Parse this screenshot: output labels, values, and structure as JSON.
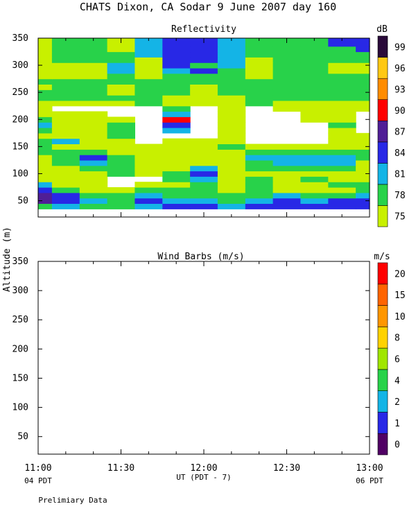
{
  "title": "CHATS Dixon, CA  Sodar   9 June 2007  day 160",
  "ylabel": "Altitude (m)",
  "xlabel": "UT  (PDT - 7)",
  "x_ticks": [
    "11:00",
    "11:30",
    "12:00",
    "12:30",
    "13:00"
  ],
  "x_sub_left": "04 PDT",
  "x_sub_right": "06 PDT",
  "footnote": "Prelimiary Data",
  "colors": {
    "75": "#c8f000",
    "78": "#28d24a",
    "81": "#14b4e6",
    "84": "#2828e6",
    "87": "#501e96",
    "90": "#ff0000",
    "93": "#ff8c00",
    "96": "#ffc814",
    "99": "#2a0a3a"
  },
  "chart_data": [
    {
      "type": "heatmap",
      "title": "Reflectivity",
      "colorbar_unit": "dB",
      "colorbar_levels": [
        "75",
        "78",
        "81",
        "84",
        "87",
        "90",
        "93",
        "96",
        "99"
      ],
      "colorbar_colors": [
        "#c8f000",
        "#28d24a",
        "#14b4e6",
        "#2828e6",
        "#501e96",
        "#ff0000",
        "#ff8c00",
        "#ffc814",
        "#2a0a3a"
      ],
      "x": [
        "11:00",
        "11:10",
        "11:20",
        "11:30",
        "11:40",
        "11:50",
        "12:00",
        "12:10",
        "12:20",
        "12:30",
        "12:40",
        "12:50",
        "13:00"
      ],
      "y": [
        40,
        50,
        60,
        70,
        80,
        90,
        100,
        110,
        120,
        130,
        140,
        150,
        160,
        170,
        180,
        190,
        200,
        210,
        220,
        230,
        240,
        250,
        260,
        270,
        280,
        290,
        300,
        310,
        320,
        330,
        340,
        350
      ],
      "ylim": [
        20,
        350
      ],
      "yticks": [
        50,
        100,
        150,
        200,
        250,
        300,
        350
      ],
      "values_note": "null = no data (white)",
      "values": [
        [
          78,
          81,
          78,
          78,
          81,
          84,
          84,
          81,
          84,
          84,
          84,
          84,
          84
        ],
        [
          87,
          84,
          81,
          78,
          84,
          81,
          81,
          78,
          81,
          84,
          81,
          84,
          84
        ],
        [
          87,
          84,
          78,
          78,
          81,
          78,
          78,
          78,
          78,
          81,
          78,
          78,
          81
        ],
        [
          84,
          78,
          75,
          75,
          78,
          78,
          78,
          75,
          78,
          75,
          75,
          75,
          78
        ],
        [
          81,
          75,
          75,
          null,
          75,
          75,
          78,
          75,
          78,
          75,
          75,
          78,
          78
        ],
        [
          75,
          75,
          75,
          null,
          null,
          78,
          81,
          75,
          78,
          75,
          78,
          75,
          75
        ],
        [
          75,
          75,
          75,
          78,
          75,
          78,
          84,
          75,
          75,
          75,
          75,
          75,
          75
        ],
        [
          75,
          75,
          78,
          78,
          75,
          75,
          81,
          75,
          78,
          78,
          78,
          78,
          75
        ],
        [
          75,
          78,
          81,
          78,
          75,
          75,
          75,
          75,
          78,
          81,
          81,
          81,
          75
        ],
        [
          75,
          78,
          84,
          78,
          75,
          75,
          75,
          75,
          81,
          81,
          81,
          81,
          78
        ],
        [
          78,
          78,
          78,
          75,
          75,
          75,
          75,
          75,
          78,
          78,
          78,
          78,
          78
        ],
        [
          78,
          75,
          75,
          75,
          75,
          75,
          75,
          78,
          75,
          75,
          75,
          75,
          75
        ],
        [
          78,
          81,
          75,
          75,
          null,
          75,
          75,
          75,
          null,
          null,
          null,
          75,
          75
        ],
        [
          75,
          75,
          75,
          78,
          null,
          null,
          null,
          75,
          null,
          null,
          null,
          75,
          75
        ],
        [
          78,
          75,
          75,
          78,
          null,
          81,
          null,
          75,
          null,
          null,
          null,
          75,
          null
        ],
        [
          81,
          75,
          75,
          78,
          null,
          84,
          null,
          75,
          null,
          null,
          null,
          78,
          null
        ],
        [
          78,
          75,
          75,
          75,
          null,
          90,
          null,
          75,
          null,
          null,
          75,
          75,
          null
        ],
        [
          75,
          75,
          75,
          null,
          null,
          81,
          null,
          75,
          null,
          null,
          75,
          75,
          null
        ],
        [
          75,
          null,
          null,
          null,
          null,
          78,
          null,
          75,
          null,
          75,
          75,
          75,
          75
        ],
        [
          75,
          75,
          75,
          75,
          78,
          75,
          75,
          75,
          78,
          75,
          75,
          75,
          75
        ],
        [
          78,
          78,
          78,
          78,
          78,
          75,
          75,
          75,
          78,
          78,
          78,
          78,
          78
        ],
        [
          78,
          78,
          78,
          75,
          78,
          78,
          75,
          78,
          78,
          78,
          78,
          78,
          78
        ],
        [
          75,
          78,
          78,
          75,
          78,
          78,
          75,
          78,
          78,
          78,
          78,
          78,
          78
        ],
        [
          78,
          78,
          78,
          78,
          78,
          78,
          78,
          78,
          78,
          78,
          78,
          78,
          78
        ],
        [
          75,
          75,
          75,
          78,
          75,
          78,
          78,
          78,
          75,
          78,
          78,
          78,
          78
        ],
        [
          75,
          75,
          75,
          81,
          75,
          81,
          84,
          78,
          75,
          78,
          78,
          75,
          75
        ],
        [
          75,
          75,
          75,
          81,
          75,
          84,
          78,
          81,
          75,
          78,
          78,
          75,
          75
        ],
        [
          75,
          78,
          78,
          78,
          75,
          84,
          84,
          81,
          75,
          78,
          78,
          78,
          78
        ],
        [
          75,
          78,
          78,
          78,
          81,
          84,
          84,
          81,
          78,
          78,
          78,
          78,
          78
        ],
        [
          75,
          78,
          78,
          75,
          81,
          84,
          84,
          81,
          78,
          78,
          78,
          78,
          84
        ],
        [
          75,
          78,
          78,
          75,
          81,
          84,
          84,
          81,
          78,
          78,
          78,
          84,
          84
        ],
        [
          75,
          78,
          78,
          75,
          81,
          84,
          84,
          81,
          78,
          78,
          78,
          84,
          84
        ]
      ]
    },
    {
      "type": "scatter",
      "title": "Wind Barbs (m/s)",
      "colorbar_unit": "m/s",
      "colorbar_levels": [
        "0",
        "1",
        "2",
        "4",
        "6",
        "8",
        "10",
        "15",
        "20"
      ],
      "colorbar_colors": [
        "#500064",
        "#2828e6",
        "#14b4e6",
        "#28d24a",
        "#a0e600",
        "#ffd200",
        "#ff9600",
        "#ff6400",
        "#ff0000"
      ],
      "ylim": [
        20,
        350
      ],
      "yticks": [
        50,
        100,
        150,
        200,
        250,
        300,
        350
      ],
      "values": []
    }
  ]
}
